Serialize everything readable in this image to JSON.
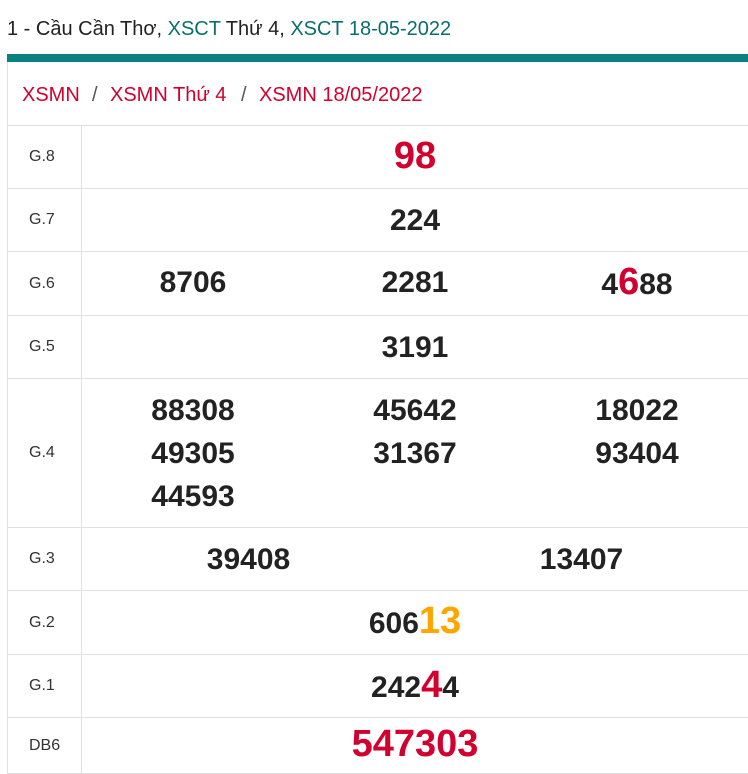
{
  "header": {
    "prefix": "1 - Cầu Cần Thơ, ",
    "link1": "XSCT",
    "mid": " Thứ 4, ",
    "link2": "XSCT 18-05-2022"
  },
  "breadcrumb": [
    "XSMN",
    "XSMN Thứ 4",
    "XSMN 18/05/2022"
  ],
  "breadcrumb_sep": "/",
  "colors": {
    "accent": "#0b8080",
    "red": "#d1002f",
    "orange": "#ffa500"
  },
  "prizes": [
    {
      "label": "G.8",
      "rows": [
        [
          [
            {
              "t": "98",
              "c": "red",
              "big": true
            }
          ]
        ]
      ]
    },
    {
      "label": "G.7",
      "rows": [
        [
          [
            {
              "t": "224"
            }
          ]
        ]
      ]
    },
    {
      "label": "G.6",
      "rows": [
        [
          [
            {
              "t": "8706"
            }
          ],
          [
            {
              "t": "2281"
            }
          ],
          [
            {
              "t": "4"
            },
            {
              "t": "6",
              "c": "red",
              "big": true
            },
            {
              "t": "88"
            }
          ]
        ]
      ]
    },
    {
      "label": "G.5",
      "rows": [
        [
          [
            {
              "t": "3191"
            }
          ]
        ]
      ]
    },
    {
      "label": "G.4",
      "rows": [
        [
          [
            {
              "t": "88308"
            }
          ],
          [
            {
              "t": "45642"
            }
          ],
          [
            {
              "t": "18022"
            }
          ]
        ],
        [
          [
            {
              "t": "49305"
            }
          ],
          [
            {
              "t": "31367"
            }
          ],
          [
            {
              "t": "93404"
            }
          ]
        ],
        [
          [
            {
              "t": "44593"
            }
          ],
          [],
          []
        ]
      ]
    },
    {
      "label": "G.3",
      "rows": [
        [
          [
            {
              "t": "39408"
            }
          ],
          [
            {
              "t": "13407"
            }
          ]
        ]
      ]
    },
    {
      "label": "G.2",
      "rows": [
        [
          [
            {
              "t": "606"
            },
            {
              "t": "13",
              "c": "orange",
              "big": true
            }
          ]
        ]
      ]
    },
    {
      "label": "G.1",
      "rows": [
        [
          [
            {
              "t": "242"
            },
            {
              "t": "4",
              "c": "red",
              "big": true
            },
            {
              "t": "4"
            }
          ]
        ]
      ]
    },
    {
      "label": "DB6",
      "rows": [
        [
          [
            {
              "t": "547303",
              "c": "red",
              "big": true
            }
          ]
        ]
      ]
    }
  ]
}
